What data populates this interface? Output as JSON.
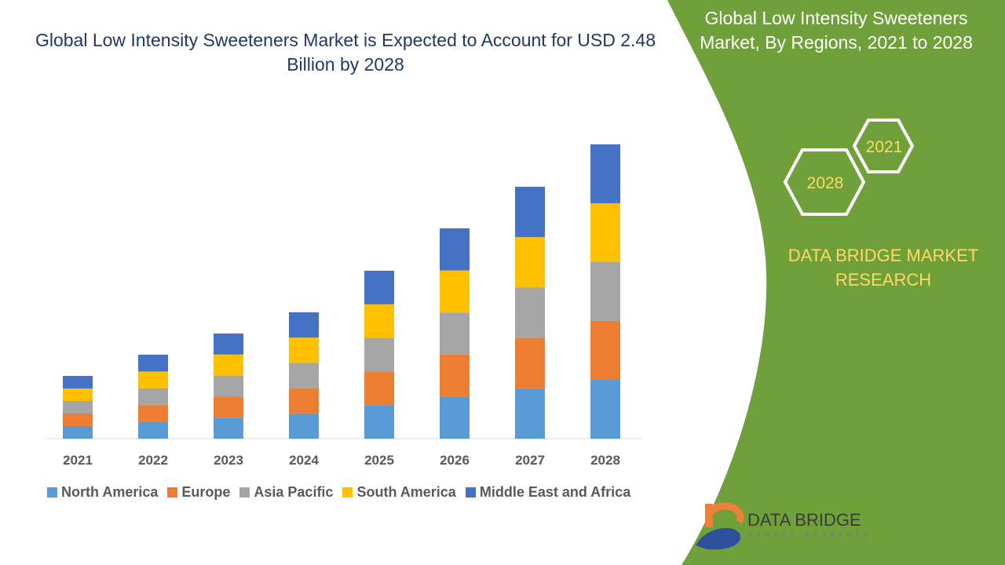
{
  "title": "Global Low Intensity Sweeteners Market is Expected to Account for USD 2.48 Billion by 2028",
  "side_panel": {
    "title": "Global Low Intensity Sweeteners Market, By Regions, 2021 to 2028",
    "hex_labels": [
      "2021",
      "2028"
    ],
    "brand": "DATA BRIDGE MARKET RESEARCH",
    "logo_text": "DATA BRIDGE",
    "logo_sub": "MARKET RESEARCH",
    "colors": {
      "panel": "#70a03a",
      "accent": "#ffd966"
    }
  },
  "chart_data": {
    "type": "bar",
    "stacked": true,
    "title": "Global Low Intensity Sweeteners Market is Expected to Account for USD 2.48 Billion by 2028",
    "categories": [
      "2021",
      "2022",
      "2023",
      "2024",
      "2025",
      "2026",
      "2027",
      "2028"
    ],
    "series": [
      {
        "name": "North America",
        "color": "#5b9bd5",
        "values": [
          16,
          21.4,
          26.8,
          32.2,
          42.8,
          53.6,
          64.2,
          75
        ]
      },
      {
        "name": "Europe",
        "color": "#ed7d31",
        "values": [
          16,
          21.4,
          26.8,
          32.2,
          42.8,
          53.6,
          64.2,
          75
        ]
      },
      {
        "name": "Asia Pacific",
        "color": "#a5a5a5",
        "values": [
          16,
          21.4,
          26.8,
          32.2,
          42.8,
          53.6,
          64.2,
          75
        ]
      },
      {
        "name": "South America",
        "color": "#ffc000",
        "values": [
          16,
          21.4,
          26.8,
          32.2,
          42.8,
          53.6,
          64.2,
          75
        ]
      },
      {
        "name": "Middle East and Africa",
        "color": "#4472c4",
        "values": [
          16,
          21.4,
          26.8,
          32.2,
          42.8,
          53.6,
          64.2,
          75
        ]
      }
    ],
    "xlabel": "",
    "ylabel": "",
    "yaxis_visible": false,
    "grid": false,
    "legend_position": "bottom"
  }
}
